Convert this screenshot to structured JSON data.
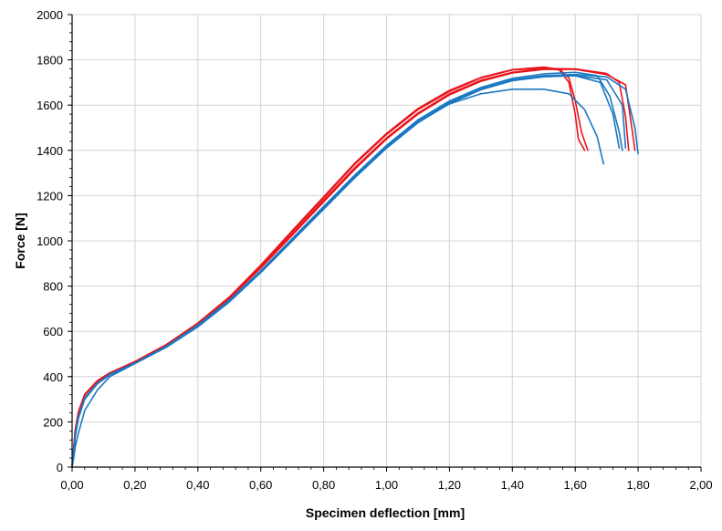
{
  "chart_data": {
    "type": "line",
    "xlabel": "Specimen deflection [mm]",
    "ylabel": "Force [N]",
    "xlim": [
      0,
      2.0
    ],
    "ylim": [
      0,
      2000
    ],
    "x_ticks": [
      "0,00",
      "0,20",
      "0,40",
      "0,60",
      "0,80",
      "1,00",
      "1,20",
      "1,40",
      "1,60",
      "1,80",
      "2,00"
    ],
    "y_ticks": [
      "0",
      "200",
      "400",
      "600",
      "800",
      "1000",
      "1200",
      "1400",
      "1600",
      "1800",
      "2000"
    ],
    "grid": true,
    "colors": {
      "red": "#e8141c",
      "blue": "#1a78c2",
      "grid": "#d4d4d4",
      "axis": "#000000"
    },
    "series": [
      {
        "color": "red",
        "x": [
          0,
          0.005,
          0.01,
          0.02,
          0.04,
          0.08,
          0.12,
          0.2,
          0.3,
          0.4,
          0.5,
          0.6,
          0.7,
          0.8,
          0.9,
          1.0,
          1.1,
          1.2,
          1.3,
          1.4,
          1.5,
          1.55,
          1.58,
          1.6,
          1.61,
          1.63
        ],
        "y": [
          0,
          80,
          160,
          240,
          320,
          380,
          415,
          465,
          540,
          635,
          750,
          890,
          1040,
          1190,
          1340,
          1470,
          1580,
          1660,
          1720,
          1755,
          1765,
          1755,
          1700,
          1560,
          1450,
          1400
        ]
      },
      {
        "color": "red",
        "x": [
          0,
          0.005,
          0.01,
          0.02,
          0.04,
          0.08,
          0.12,
          0.2,
          0.3,
          0.4,
          0.5,
          0.6,
          0.7,
          0.8,
          0.9,
          1.0,
          1.1,
          1.2,
          1.3,
          1.4,
          1.5,
          1.55,
          1.58,
          1.6,
          1.62,
          1.64
        ],
        "y": [
          0,
          85,
          165,
          245,
          322,
          382,
          417,
          467,
          542,
          637,
          752,
          893,
          1045,
          1195,
          1345,
          1475,
          1585,
          1665,
          1722,
          1757,
          1768,
          1758,
          1720,
          1620,
          1480,
          1400
        ]
      },
      {
        "color": "red",
        "x": [
          0,
          0.005,
          0.01,
          0.02,
          0.04,
          0.08,
          0.12,
          0.2,
          0.3,
          0.4,
          0.5,
          0.6,
          0.7,
          0.8,
          0.9,
          1.0,
          1.1,
          1.2,
          1.3,
          1.4,
          1.5,
          1.6,
          1.7,
          1.74,
          1.76,
          1.77
        ],
        "y": [
          0,
          82,
          162,
          242,
          320,
          380,
          415,
          465,
          540,
          635,
          748,
          885,
          1030,
          1180,
          1325,
          1455,
          1565,
          1650,
          1710,
          1745,
          1762,
          1760,
          1740,
          1700,
          1550,
          1400
        ]
      },
      {
        "color": "red",
        "x": [
          0,
          0.005,
          0.01,
          0.02,
          0.04,
          0.08,
          0.12,
          0.2,
          0.3,
          0.4,
          0.5,
          0.6,
          0.7,
          0.8,
          0.9,
          1.0,
          1.1,
          1.2,
          1.3,
          1.4,
          1.5,
          1.6,
          1.7,
          1.76,
          1.78,
          1.79
        ],
        "y": [
          0,
          78,
          158,
          238,
          318,
          378,
          413,
          463,
          538,
          633,
          745,
          880,
          1025,
          1172,
          1318,
          1450,
          1560,
          1645,
          1705,
          1742,
          1758,
          1758,
          1735,
          1690,
          1500,
          1400
        ]
      },
      {
        "color": "blue",
        "x": [
          0,
          0.005,
          0.01,
          0.02,
          0.04,
          0.08,
          0.12,
          0.2,
          0.3,
          0.4,
          0.5,
          0.6,
          0.7,
          0.8,
          0.9,
          1.0,
          1.1,
          1.2,
          1.3,
          1.4,
          1.5,
          1.58,
          1.63,
          1.67,
          1.69
        ],
        "y": [
          0,
          40,
          90,
          150,
          250,
          340,
          400,
          458,
          530,
          620,
          730,
          860,
          1000,
          1145,
          1285,
          1415,
          1525,
          1605,
          1650,
          1670,
          1670,
          1650,
          1580,
          1460,
          1340
        ]
      },
      {
        "color": "blue",
        "x": [
          0,
          0.005,
          0.01,
          0.02,
          0.04,
          0.08,
          0.12,
          0.2,
          0.3,
          0.4,
          0.5,
          0.6,
          0.7,
          0.8,
          0.9,
          1.0,
          1.1,
          1.2,
          1.3,
          1.4,
          1.5,
          1.6,
          1.67,
          1.71,
          1.74,
          1.75
        ],
        "y": [
          0,
          70,
          140,
          220,
          305,
          370,
          410,
          460,
          535,
          628,
          738,
          868,
          1010,
          1152,
          1292,
          1422,
          1535,
          1618,
          1678,
          1718,
          1738,
          1745,
          1730,
          1640,
          1480,
          1400
        ]
      },
      {
        "color": "blue",
        "x": [
          0,
          0.005,
          0.01,
          0.02,
          0.04,
          0.08,
          0.12,
          0.2,
          0.3,
          0.4,
          0.5,
          0.6,
          0.7,
          0.8,
          0.9,
          1.0,
          1.1,
          1.2,
          1.3,
          1.4,
          1.5,
          1.6,
          1.7,
          1.75,
          1.76
        ],
        "y": [
          0,
          65,
          135,
          215,
          300,
          368,
          408,
          458,
          532,
          625,
          733,
          860,
          1000,
          1140,
          1280,
          1410,
          1522,
          1607,
          1668,
          1708,
          1725,
          1730,
          1712,
          1600,
          1410
        ]
      },
      {
        "color": "blue",
        "x": [
          0,
          0.005,
          0.01,
          0.02,
          0.04,
          0.08,
          0.12,
          0.2,
          0.3,
          0.4,
          0.5,
          0.6,
          0.7,
          0.8,
          0.9,
          1.0,
          1.1,
          1.2,
          1.3,
          1.4,
          1.5,
          1.6,
          1.7,
          1.76,
          1.79,
          1.8
        ],
        "y": [
          0,
          72,
          142,
          222,
          306,
          370,
          410,
          460,
          534,
          627,
          736,
          864,
          1005,
          1146,
          1286,
          1416,
          1528,
          1612,
          1672,
          1712,
          1730,
          1735,
          1725,
          1670,
          1500,
          1385
        ]
      },
      {
        "color": "blue",
        "x": [
          0,
          0.005,
          0.01,
          0.02,
          0.04,
          0.08,
          0.12,
          0.2,
          0.3,
          0.4,
          0.5,
          0.6,
          0.7,
          0.8,
          0.9,
          1.0,
          1.1,
          1.2,
          1.3,
          1.4,
          1.5,
          1.6,
          1.68,
          1.72,
          1.74
        ],
        "y": [
          0,
          68,
          138,
          218,
          303,
          369,
          409,
          459,
          533,
          626,
          735,
          863,
          1003,
          1144,
          1284,
          1414,
          1526,
          1610,
          1670,
          1710,
          1728,
          1730,
          1700,
          1560,
          1410
        ]
      }
    ]
  }
}
